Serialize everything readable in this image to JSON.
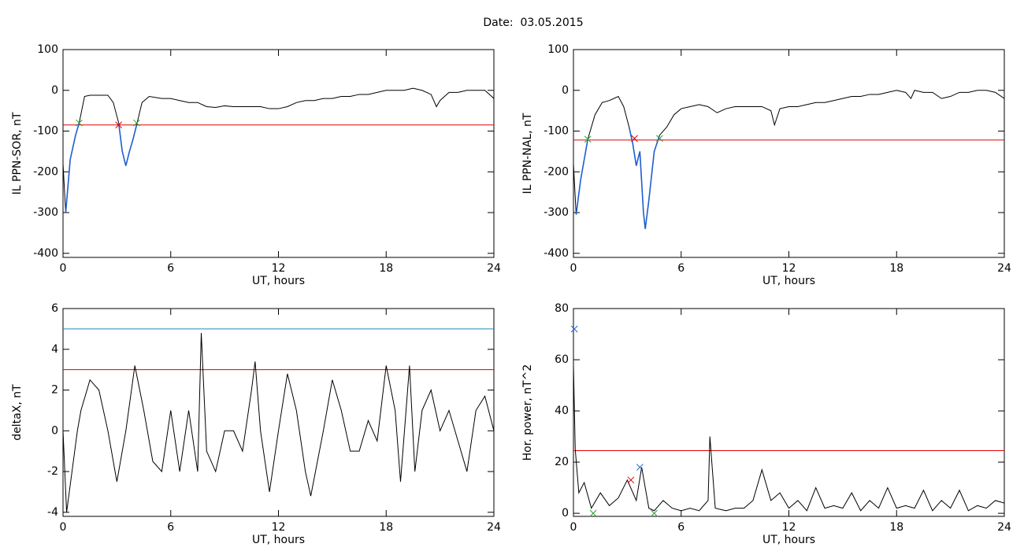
{
  "title": "Date:  03.05.2015",
  "chart_data": [
    {
      "type": "line",
      "ylabel": "IL PPN-SOR, nT",
      "xlabel": "UT, hours",
      "xlim": [
        0,
        24
      ],
      "xticks": [
        0,
        6,
        12,
        18,
        24
      ],
      "ylim": [
        -410,
        100
      ],
      "yticks": [
        100,
        0,
        -100,
        -200,
        -300,
        -400
      ],
      "x": [
        0,
        0.15,
        0.4,
        0.7,
        0.9,
        1.2,
        1.5,
        2,
        2.5,
        2.8,
        3.1,
        3.3,
        3.5,
        3.7,
        3.9,
        4.1,
        4.4,
        4.8,
        5.5,
        6,
        6.5,
        7,
        7.5,
        8,
        8.5,
        9,
        9.5,
        10,
        10.5,
        11,
        11.5,
        12,
        12.5,
        13,
        13.5,
        14,
        14.5,
        15,
        15.5,
        16,
        16.5,
        17,
        17.5,
        18,
        18.5,
        19,
        19.5,
        20,
        20.5,
        20.8,
        21,
        21.5,
        22,
        22.5,
        23,
        23.5,
        24
      ],
      "series": [
        {
          "color": "#000000",
          "values": [
            -180,
            -300,
            -170,
            -110,
            -80,
            -15,
            -12,
            -12,
            -12,
            -30,
            -80,
            -150,
            -185,
            -150,
            -120,
            -85,
            -30,
            -15,
            -20,
            -20,
            -25,
            -30,
            -30,
            -40,
            -42,
            -38,
            -40,
            -40,
            -40,
            -40,
            -45,
            -45,
            -40,
            -30,
            -25,
            -25,
            -20,
            -20,
            -15,
            -15,
            -10,
            -10,
            -5,
            0,
            0,
            0,
            5,
            0,
            -10,
            -40,
            -25,
            -5,
            -5,
            0,
            0,
            0,
            -20
          ]
        }
      ],
      "highlight": {
        "color": "#1f5fd0",
        "ranges": [
          [
            0.15,
            0.9
          ],
          [
            3.1,
            4.1
          ]
        ]
      },
      "hlines": [
        {
          "value": -85,
          "color": "#e00000"
        }
      ],
      "markers": [
        {
          "x": 0.9,
          "y": -80,
          "color": "#2ca02c"
        },
        {
          "x": 3.1,
          "y": -85,
          "color": "#e00000"
        },
        {
          "x": 4.1,
          "y": -80,
          "color": "#2ca02c"
        }
      ]
    },
    {
      "type": "line",
      "ylabel": "IL PPN-NAL, nT",
      "xlabel": "UT, hours",
      "xlim": [
        0,
        24
      ],
      "xticks": [
        0,
        6,
        12,
        18,
        24
      ],
      "ylim": [
        -410,
        100
      ],
      "yticks": [
        100,
        0,
        -100,
        -200,
        -300,
        -400
      ],
      "x": [
        0,
        0.15,
        0.4,
        0.8,
        1.2,
        1.6,
        2,
        2.5,
        2.8,
        3.1,
        3.3,
        3.5,
        3.7,
        3.9,
        4,
        4.2,
        4.5,
        4.8,
        5.2,
        5.6,
        6,
        6.5,
        7,
        7.5,
        8,
        8.5,
        9,
        9.5,
        10,
        10.5,
        11,
        11.2,
        11.5,
        12,
        12.5,
        13,
        13.5,
        14,
        14.5,
        15,
        15.5,
        16,
        16.5,
        17,
        17.5,
        18,
        18.5,
        18.8,
        19,
        19.5,
        20,
        20.5,
        21,
        21.5,
        22,
        22.5,
        23,
        23.5,
        24
      ],
      "series": [
        {
          "color": "#000000",
          "values": [
            -180,
            -305,
            -220,
            -120,
            -60,
            -30,
            -25,
            -15,
            -40,
            -90,
            -130,
            -185,
            -150,
            -300,
            -340,
            -270,
            -150,
            -110,
            -90,
            -60,
            -45,
            -40,
            -35,
            -40,
            -55,
            -45,
            -40,
            -40,
            -40,
            -40,
            -50,
            -85,
            -45,
            -40,
            -40,
            -35,
            -30,
            -30,
            -25,
            -20,
            -15,
            -15,
            -10,
            -10,
            -5,
            0,
            -5,
            -20,
            0,
            -5,
            -5,
            -20,
            -15,
            -5,
            -5,
            0,
            0,
            -5,
            -20
          ]
        }
      ],
      "highlight": {
        "color": "#1f5fd0",
        "ranges": [
          [
            0.15,
            0.8
          ],
          [
            3.1,
            4.8
          ]
        ]
      },
      "hlines": [
        {
          "value": -122,
          "color": "#e00000"
        }
      ],
      "markers": [
        {
          "x": 0.8,
          "y": -120,
          "color": "#2ca02c"
        },
        {
          "x": 3.4,
          "y": -118,
          "color": "#e00000"
        },
        {
          "x": 4.8,
          "y": -118,
          "color": "#2ca02c"
        }
      ]
    },
    {
      "type": "line",
      "ylabel": "deltaX, nT",
      "xlabel": "UT, hours",
      "xlim": [
        0,
        24
      ],
      "xticks": [
        0,
        6,
        12,
        18,
        24
      ],
      "ylim": [
        -4.2,
        6
      ],
      "yticks": [
        -4,
        -2,
        0,
        2,
        4,
        6
      ],
      "x": [
        0,
        0.2,
        0.5,
        0.8,
        1,
        1.5,
        2,
        2.5,
        3,
        3.5,
        4,
        4.5,
        5,
        5.5,
        6,
        6.5,
        7,
        7.5,
        7.7,
        8,
        8.5,
        9,
        9.5,
        10,
        10.5,
        10.7,
        11,
        11.5,
        12,
        12.5,
        13,
        13.5,
        13.8,
        14.5,
        15,
        15.5,
        16,
        16.5,
        17,
        17.5,
        18,
        18.5,
        18.8,
        19.3,
        19.6,
        20,
        20.5,
        21,
        21.5,
        22,
        22.5,
        23,
        23.5,
        24
      ],
      "series": [
        {
          "color": "#000000",
          "values": [
            0,
            -4,
            -2,
            0,
            1,
            2.5,
            2,
            0,
            -2.5,
            0,
            3.2,
            1,
            -1.5,
            -2,
            1,
            -2,
            1,
            -2,
            4.8,
            -1,
            -2,
            0,
            0,
            -1,
            2,
            3.4,
            0,
            -3,
            0,
            2.8,
            1,
            -2,
            -3.2,
            0,
            2.5,
            1,
            -1,
            -1,
            0.5,
            -0.5,
            3.2,
            1,
            -2.5,
            3.2,
            -2,
            1,
            2,
            0,
            1,
            -0.5,
            -2,
            1,
            1.7,
            0
          ]
        }
      ],
      "hlines": [
        {
          "value": 5,
          "color": "#1f8fb0"
        },
        {
          "value": 3,
          "color": "#e00000"
        }
      ],
      "markers": []
    },
    {
      "type": "line",
      "ylabel": "Hor. power, nT^2",
      "xlabel": "UT, hours",
      "xlim": [
        0,
        24
      ],
      "xticks": [
        0,
        6,
        12,
        18,
        24
      ],
      "ylim": [
        -1.2,
        80
      ],
      "yticks": [
        0,
        20,
        40,
        60,
        80
      ],
      "x": [
        0,
        0.1,
        0.3,
        0.6,
        1,
        1.5,
        2,
        2.5,
        3,
        3.5,
        3.8,
        4.2,
        4.5,
        5,
        5.5,
        6,
        6.5,
        7,
        7.5,
        7.6,
        7.9,
        8.5,
        9,
        9.5,
        10,
        10.5,
        11,
        11.5,
        12,
        12.5,
        13,
        13.5,
        14,
        14.5,
        15,
        15.5,
        16,
        16.5,
        17,
        17.5,
        18,
        18.5,
        19,
        19.5,
        20,
        20.5,
        21,
        21.5,
        22,
        22.5,
        23,
        23.5,
        24
      ],
      "series": [
        {
          "color": "#000000",
          "values": [
            58,
            25,
            8,
            12,
            2,
            8,
            3,
            6,
            13,
            5,
            18,
            2,
            1,
            5,
            2,
            1,
            2,
            1,
            5,
            30,
            2,
            1,
            2,
            2,
            5,
            17,
            5,
            8,
            2,
            5,
            1,
            10,
            2,
            3,
            2,
            8,
            1,
            5,
            2,
            10,
            2,
            3,
            2,
            9,
            1,
            5,
            2,
            9,
            1,
            3,
            2,
            5,
            4
          ]
        }
      ],
      "hlines": [
        {
          "value": 24.5,
          "color": "#e00000"
        }
      ],
      "markers": [
        {
          "x": 0.05,
          "y": 72,
          "color": "#1f5fd0"
        },
        {
          "x": 1.1,
          "y": 0,
          "color": "#2ca02c"
        },
        {
          "x": 3.2,
          "y": 13,
          "color": "#e00000"
        },
        {
          "x": 3.7,
          "y": 18,
          "color": "#1f5fd0"
        },
        {
          "x": 4.5,
          "y": 0,
          "color": "#2ca02c"
        }
      ]
    }
  ]
}
